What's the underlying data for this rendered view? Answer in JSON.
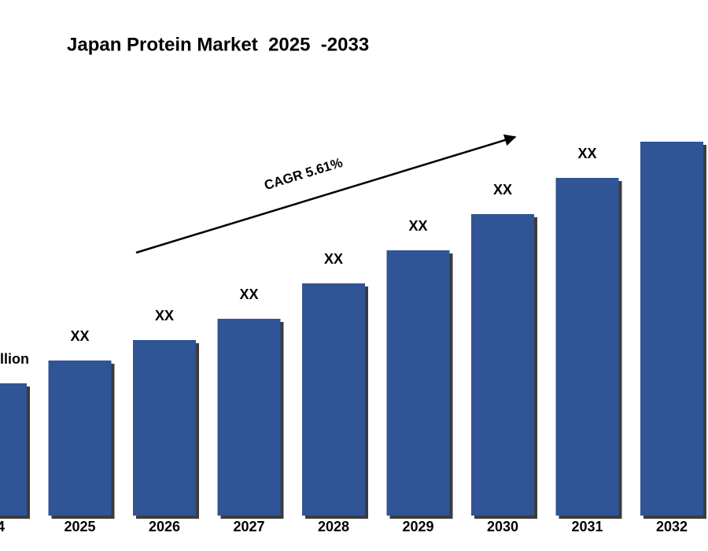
{
  "chart_data": {
    "type": "bar",
    "title": "Japan Protein Market  2025  -2033",
    "annotation": "CAGR 5.61%",
    "categories": [
      "4",
      "2025",
      "2026",
      "2027",
      "2028",
      "2029",
      "2030",
      "2031",
      "2032"
    ],
    "values": [
      168,
      197,
      223,
      250,
      295,
      337,
      383,
      429,
      475
    ],
    "value_labels": [
      "llion",
      "XX",
      "XX",
      "XX",
      "XX",
      "XX",
      "XX",
      "XX",
      null
    ],
    "color": "#2f5597",
    "ylim": [
      0,
      500
    ]
  }
}
